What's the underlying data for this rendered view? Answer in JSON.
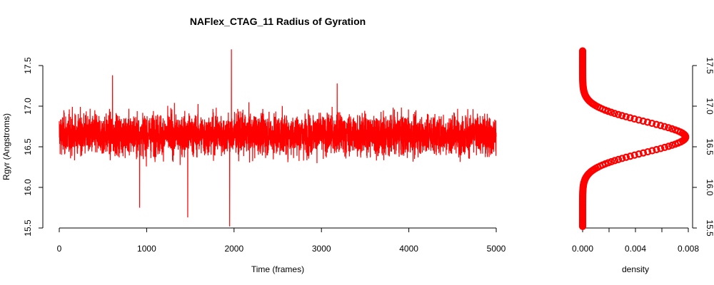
{
  "chart_data": [
    {
      "type": "line",
      "title": "NAFlex_CTAG_11 Radius of Gyration",
      "xlabel": "Time (frames)",
      "ylabel": "Rgyr (Angstroms)",
      "xlim": [
        0,
        5000
      ],
      "ylim": [
        15.5,
        17.5
      ],
      "xticks": [
        "0",
        "1000",
        "2000",
        "3000",
        "4000",
        "5000"
      ],
      "yticks": [
        "15.5",
        "16.0",
        "16.5",
        "17.0",
        "17.5"
      ],
      "grid": false,
      "color": "#ff0000",
      "series": [
        {
          "x": [
            0,
            250,
            500,
            750,
            1000,
            1250,
            1500,
            1750,
            1950,
            2000,
            2250,
            2500,
            2750,
            3000,
            3250,
            3500,
            3750,
            4000,
            4250,
            4500,
            4750,
            5000
          ],
          "y": [
            16.65,
            16.68,
            16.62,
            16.7,
            16.66,
            16.64,
            16.67,
            16.63,
            16.69,
            16.66,
            16.65,
            16.67,
            16.64,
            16.66,
            16.68,
            16.63,
            16.67,
            16.65,
            16.66,
            16.64,
            16.67,
            16.62
          ]
        }
      ],
      "range_stats": {
        "mean": 16.65,
        "typical_min": 16.15,
        "typical_max": 17.2,
        "global_min": 15.52,
        "global_max": 17.7
      },
      "extremes": [
        {
          "x": 1970,
          "y": 17.7
        },
        {
          "x": 1950,
          "y": 15.52
        },
        {
          "x": 1470,
          "y": 15.63
        },
        {
          "x": 920,
          "y": 15.75
        },
        {
          "x": 610,
          "y": 17.38
        },
        {
          "x": 3180,
          "y": 17.28
        }
      ]
    },
    {
      "type": "scatter",
      "xlabel": "density",
      "ylabel": "",
      "xlim": [
        0,
        0.008
      ],
      "ylim": [
        15.5,
        17.5
      ],
      "xticks": [
        "0.000",
        "0.004",
        "0.008"
      ],
      "yticks": [
        "15.5",
        "16.0",
        "16.5",
        "17.0",
        "17.5"
      ],
      "y_axis_side": "right",
      "color": "#ff0000",
      "density_peak": {
        "x": 0.0078,
        "y": 16.62
      },
      "y_span": [
        15.52,
        17.68
      ]
    }
  ]
}
